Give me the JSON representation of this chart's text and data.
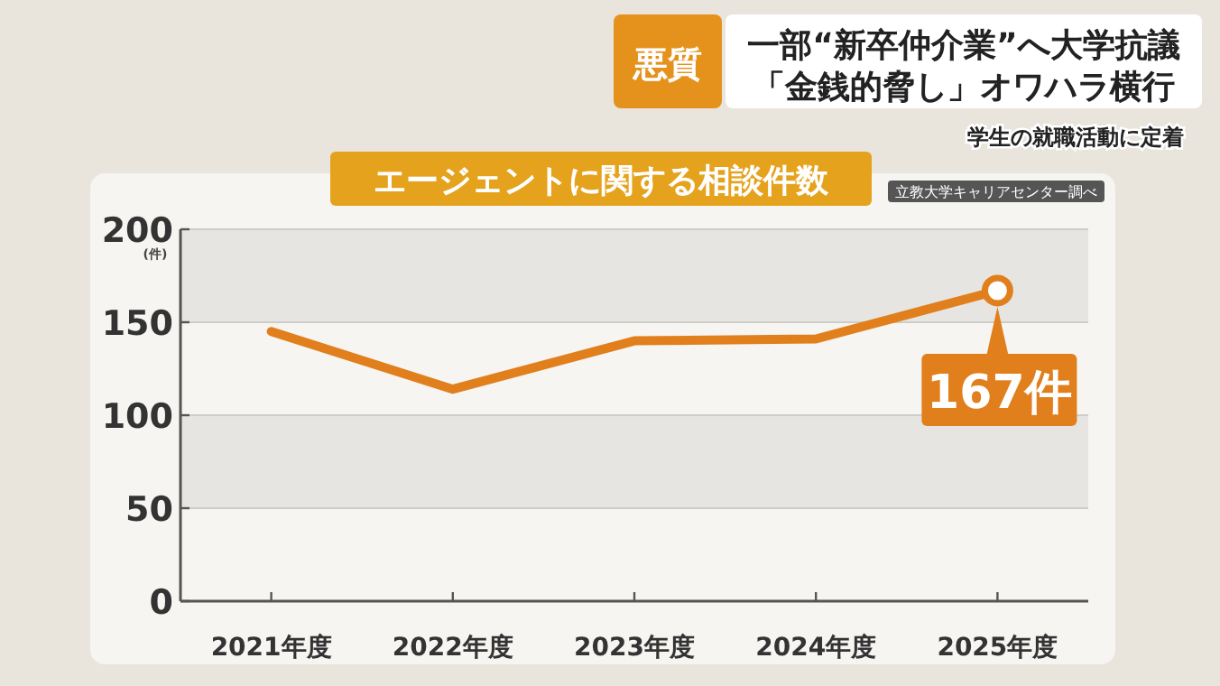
{
  "chart_data": {
    "type": "line",
    "title": "エージェントに関する相談件数",
    "ylabel": "(件)",
    "categories": [
      "2021年度",
      "2022年度",
      "2023年度",
      "2024年度",
      "2025年度"
    ],
    "series": [
      {
        "color": "#e07f1c",
        "values": [
          145,
          114,
          140,
          141,
          167
        ]
      }
    ],
    "ylim": [
      0,
      200
    ],
    "yticks": [
      0,
      50,
      100,
      150,
      200
    ],
    "grid": "y",
    "line_style": "solid",
    "annotations": [
      "悪質",
      "一部“新卒仲介業”へ大学抗議",
      "「金銭的脅し」オワハラ横行",
      "学生の就職活動に定着",
      "立教大学キャリアセンター調べ",
      {
        "text": "167件",
        "x": "2025年度",
        "y": 167
      }
    ]
  }
}
